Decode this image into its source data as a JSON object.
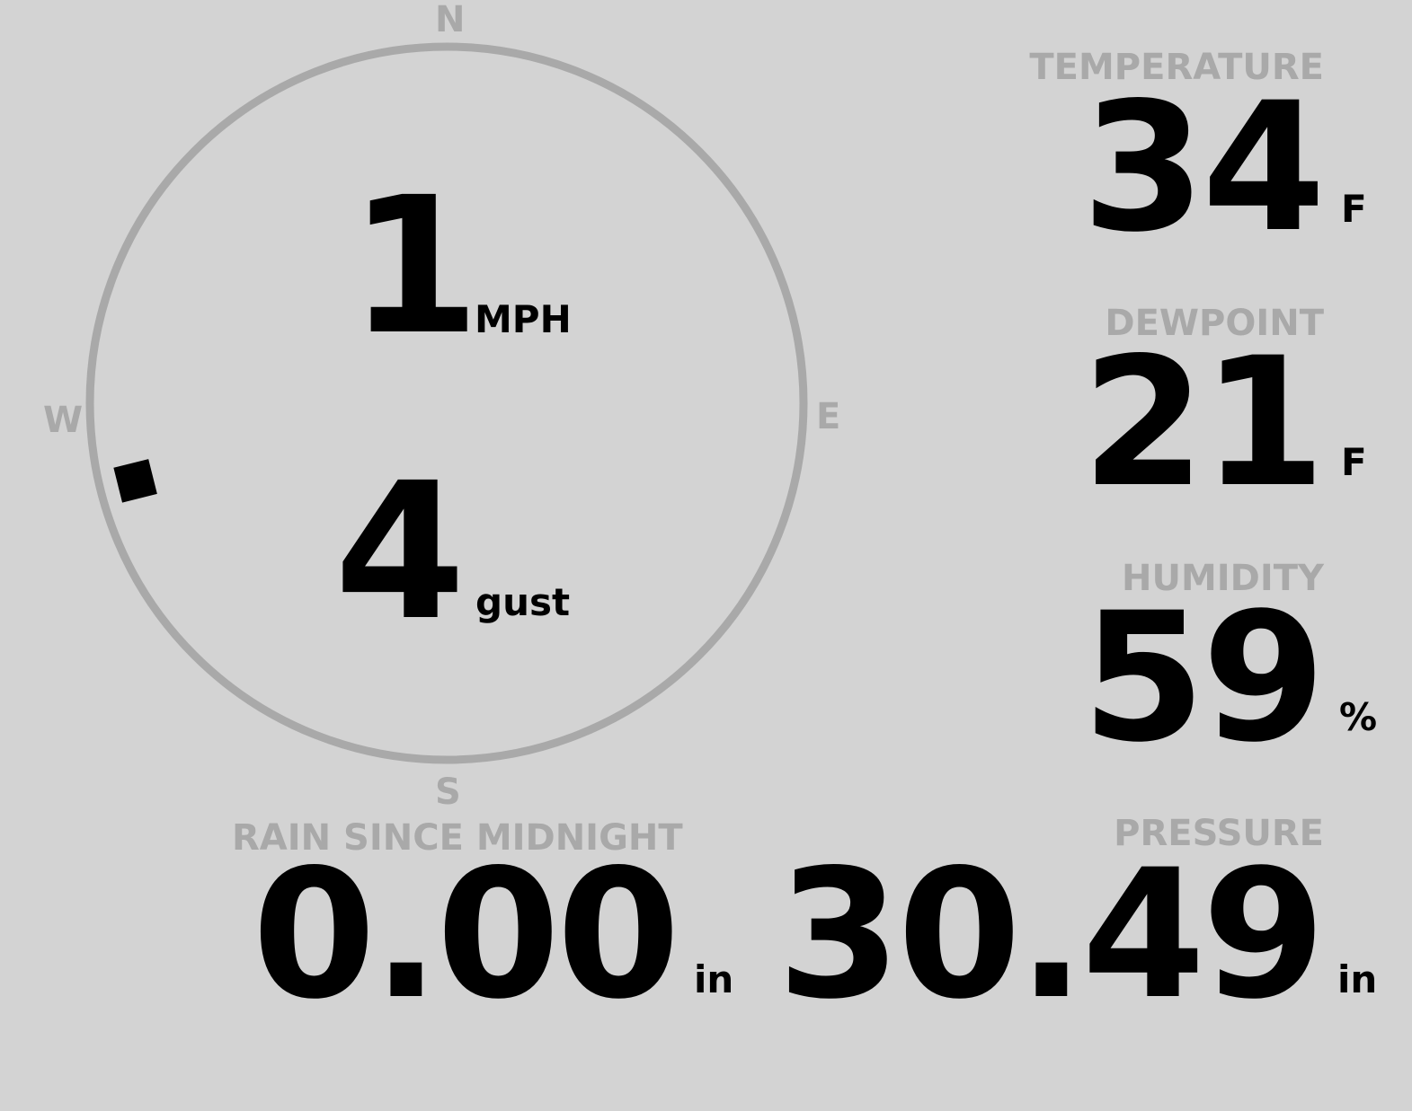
{
  "compass": {
    "north": "N",
    "south": "S",
    "east": "E",
    "west": "W",
    "wind_direction_deg": 256,
    "ring_color": "#a9a9a9"
  },
  "wind": {
    "speed": "1",
    "speed_unit": "MPH",
    "gust": "4",
    "gust_label": "gust"
  },
  "temperature": {
    "label": "TEMPERATURE",
    "value": "34",
    "unit": "F"
  },
  "dewpoint": {
    "label": "DEWPOINT",
    "value": "21",
    "unit": "F"
  },
  "humidity": {
    "label": "HUMIDITY",
    "value": "59",
    "unit": "%"
  },
  "rain": {
    "label": "RAIN SINCE MIDNIGHT",
    "value": "0.00",
    "unit": "in"
  },
  "pressure": {
    "label": "PRESSURE",
    "value": "30.49",
    "unit": "in"
  },
  "colors": {
    "background": "#d3d3d3",
    "label": "#a9a9a9",
    "value": "#000000"
  }
}
